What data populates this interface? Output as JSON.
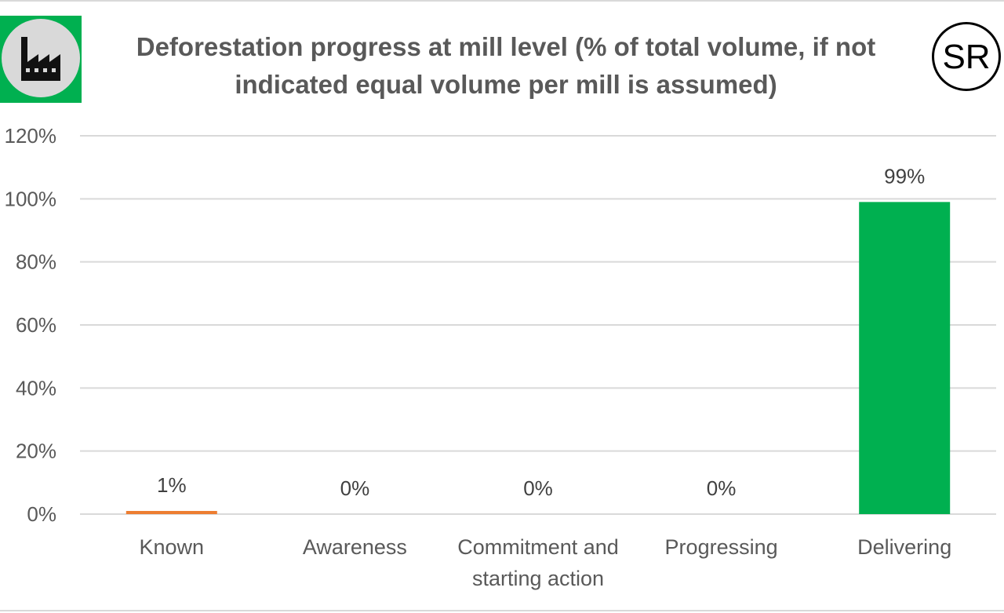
{
  "header": {
    "title_line1": "Deforestation progress at mill level (% of total volume, if not",
    "title_line2": "indicated equal volume per mill is assumed)",
    "factory_icon": "factory-icon",
    "badge_text": "SR"
  },
  "colors": {
    "badge_green": "#00b050",
    "badge_disc": "#d9d9d9",
    "known": "#ed7d31",
    "awareness": "#ffc000",
    "commitment": "#ffd966",
    "progressing": "#92d050",
    "delivering": "#00b050",
    "gridline": "#d9d9d9",
    "text": "#595959"
  },
  "chart_data": {
    "type": "bar",
    "title": "Deforestation progress at mill level (% of total volume, if not indicated equal volume per mill is assumed)",
    "categories": [
      [
        "Known"
      ],
      [
        "Awareness"
      ],
      [
        "Commitment and",
        "starting action"
      ],
      [
        "Progressing"
      ],
      [
        "Delivering"
      ]
    ],
    "values": [
      1,
      0,
      0,
      0,
      99
    ],
    "data_labels": [
      "1%",
      "0%",
      "0%",
      "0%",
      "99%"
    ],
    "ylim": [
      0,
      120
    ],
    "yticks": [
      0,
      20,
      40,
      60,
      80,
      100,
      120
    ],
    "ytick_labels": [
      "0%",
      "20%",
      "40%",
      "60%",
      "80%",
      "100%",
      "120%"
    ],
    "xlabel": "",
    "ylabel": "",
    "grid": true,
    "legend": "none"
  }
}
